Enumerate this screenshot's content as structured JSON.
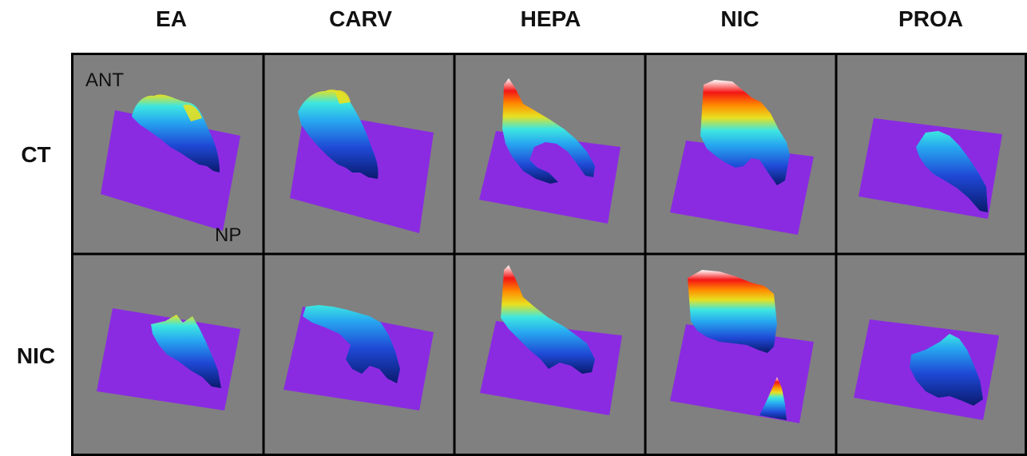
{
  "columns": [
    "EA",
    "CARV",
    "HEPA",
    "NIC",
    "PROA"
  ],
  "rows": [
    "CT",
    "NIC"
  ],
  "orientation": {
    "top_left": "ANT",
    "bottom_right": "NP"
  },
  "colors": {
    "panel_background": "#808080",
    "base_plane": "#8a2be2",
    "border": "#000000"
  },
  "colormap": [
    "#0a1a6e",
    "#1f49d6",
    "#27a7f0",
    "#3de6e0",
    "#e8e020",
    "#ff8a00",
    "#f41515",
    "#ffffff"
  ]
}
